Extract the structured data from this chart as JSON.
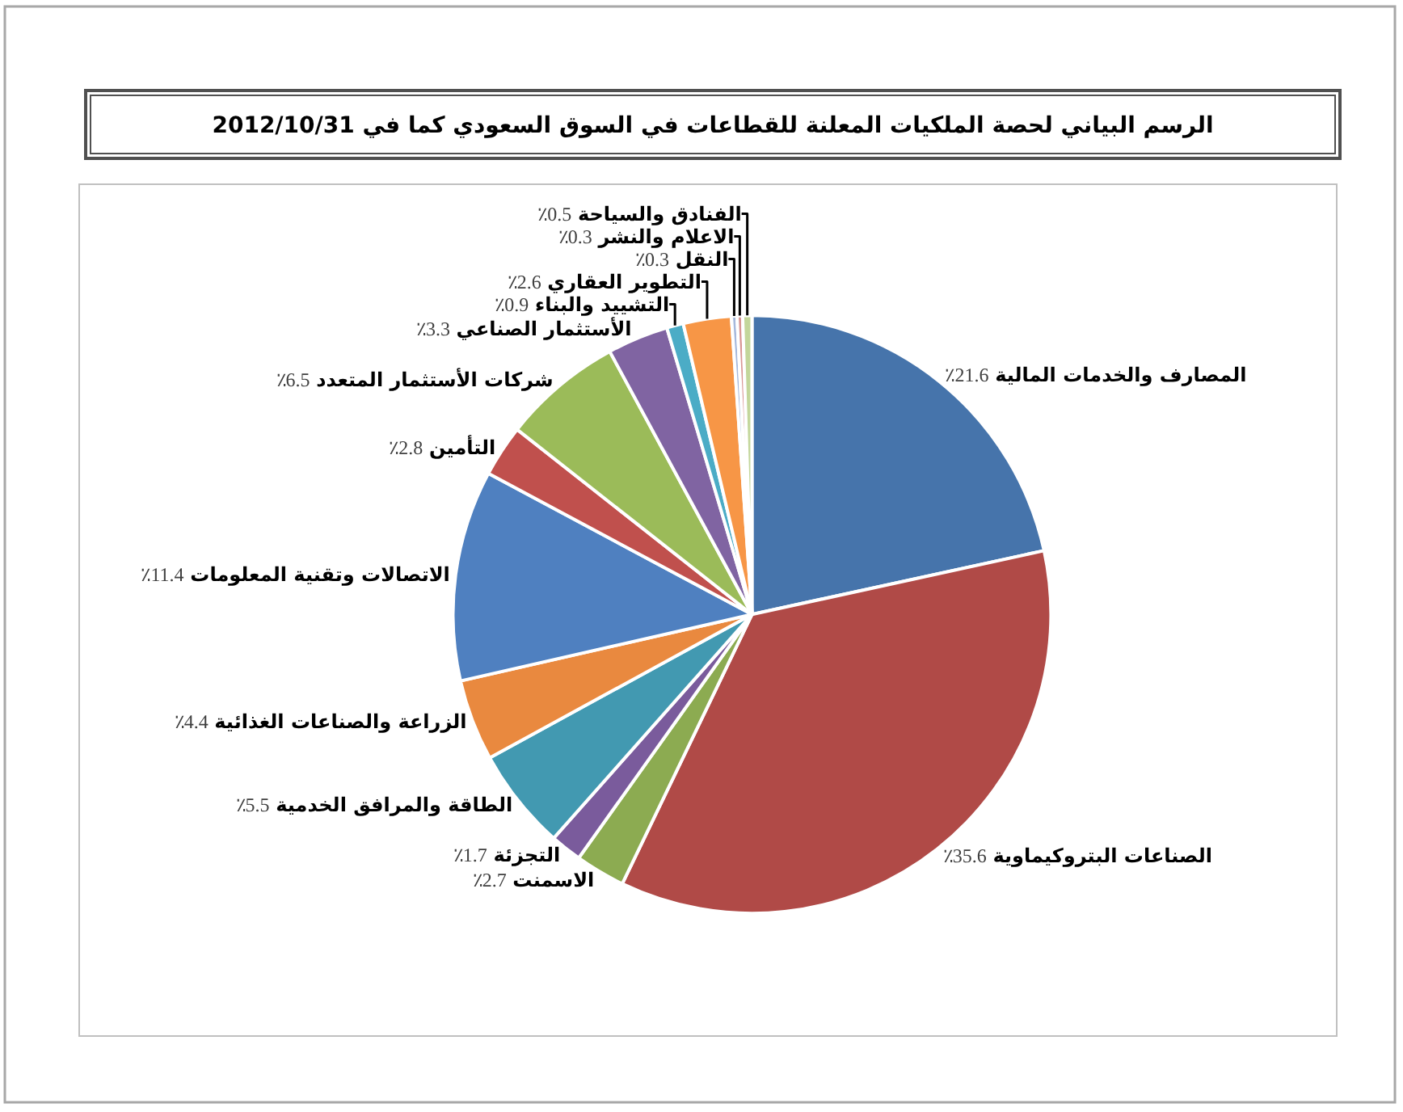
{
  "chart_data": {
    "type": "pie",
    "title": "الرسم البياني لحصة الملكيات المعلنة للقطاعات في السوق السعودي كما في 2012/10/31",
    "categories": [
      "المصارف والخدمات المالية",
      "الصناعات البتروكيماوية",
      "الاسمنت",
      "التجزئة",
      "الطاقة والمرافق الخدمية",
      "الزراعة والصناعات الغذائية",
      "الاتصالات وتقنية المعلومات",
      "التأمين",
      "شركات الأستثمار المتعدد",
      "الأستثمار الصناعي",
      "التشييد والبناء",
      "التطوير العقاري",
      "النقل",
      "الاعلام والنشر",
      "الفنادق والسياحة"
    ],
    "values": [
      21.6,
      35.6,
      2.7,
      1.7,
      5.5,
      4.4,
      11.4,
      2.8,
      6.5,
      3.3,
      0.9,
      2.6,
      0.3,
      0.3,
      0.5
    ],
    "value_labels": [
      "21.6٪",
      "35.6٪",
      "2.7٪",
      "1.7٪",
      "5.5٪",
      "4.4٪",
      "11.4٪",
      "2.8٪",
      "6.5٪",
      "3.3٪",
      "0.9٪",
      "2.6٪",
      "0.3٪",
      "0.3٪",
      "0.5٪"
    ],
    "colors": [
      "#4674ab",
      "#b04a47",
      "#8cab51",
      "#7a5b9c",
      "#4299b1",
      "#e9893f",
      "#4f80c0",
      "#c0504d",
      "#9bbb59",
      "#8064a2",
      "#4bacc6",
      "#f79646",
      "#a5b8dc",
      "#d99694",
      "#c3d69b"
    ]
  }
}
